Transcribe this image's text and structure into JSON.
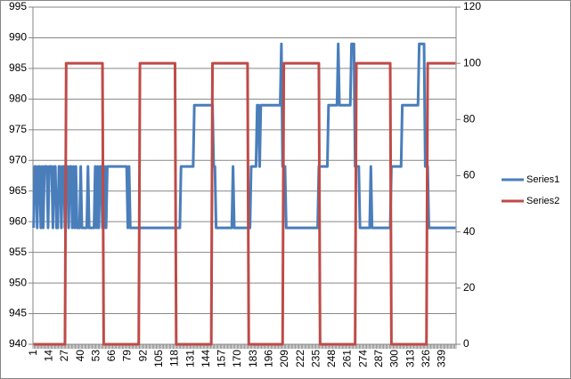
{
  "chart_data": {
    "type": "line",
    "categories": [
      "1",
      null,
      null,
      null,
      null,
      null,
      null,
      null,
      null,
      null,
      null,
      null,
      null,
      "14",
      null,
      null,
      null,
      null,
      null,
      null,
      null,
      null,
      null,
      null,
      null,
      null,
      "27",
      null,
      null,
      null,
      null,
      null,
      null,
      null,
      null,
      null,
      null,
      null,
      null,
      "40",
      null,
      null,
      null,
      null,
      null,
      null,
      null,
      null,
      null,
      null,
      null,
      null,
      "53",
      null,
      null,
      null,
      null,
      null,
      null,
      null,
      null,
      null,
      null,
      null,
      null,
      "66",
      null,
      null,
      null,
      null,
      null,
      null,
      null,
      null,
      null,
      null,
      null,
      null,
      "79",
      null,
      null,
      null,
      null,
      null,
      null,
      null,
      null,
      null,
      null,
      null,
      null,
      "92",
      null,
      null,
      null,
      null,
      null,
      null,
      null,
      null,
      null,
      null,
      null,
      null,
      "105",
      null,
      null,
      null,
      null,
      null,
      null,
      null,
      null,
      null,
      null,
      null,
      null,
      "118",
      null,
      null,
      null,
      null,
      null,
      null,
      null,
      null,
      null,
      null,
      null,
      null,
      "131",
      null,
      null,
      null,
      null,
      null,
      null,
      null,
      null,
      null,
      null,
      null,
      null,
      "144",
      null,
      null,
      null,
      null,
      null,
      null,
      null,
      null,
      null,
      null,
      null,
      null,
      "157",
      null,
      null,
      null,
      null,
      null,
      null,
      null,
      null,
      null,
      null,
      null,
      null,
      "170",
      null,
      null,
      null,
      null,
      null,
      null,
      null,
      null,
      null,
      null,
      null,
      null,
      "183",
      null,
      null,
      null,
      null,
      null,
      null,
      null,
      null,
      null,
      null,
      null,
      null,
      "196",
      null,
      null,
      null,
      null,
      null,
      null,
      null,
      null,
      null,
      null,
      null,
      null,
      "209",
      null,
      null,
      null,
      null,
      null,
      null,
      null,
      null,
      null,
      null,
      null,
      null,
      "222",
      null,
      null,
      null,
      null,
      null,
      null,
      null,
      null,
      null,
      null,
      null,
      null,
      "235",
      null,
      null,
      null,
      null,
      null,
      null,
      null,
      null,
      null,
      null,
      null,
      null,
      "248",
      null,
      null,
      null,
      null,
      null,
      null,
      null,
      null,
      null,
      null,
      null,
      null,
      "261",
      null,
      null,
      null,
      null,
      null,
      null,
      null,
      null,
      null,
      null,
      null,
      null,
      "274",
      null,
      null,
      null,
      null,
      null,
      null,
      null,
      null,
      null,
      null,
      null,
      null,
      "287",
      null,
      null,
      null,
      null,
      null,
      null,
      null,
      null,
      null,
      null,
      null,
      null,
      "300",
      null,
      null,
      null,
      null,
      null,
      null,
      null,
      null,
      null,
      null,
      null,
      null,
      "313",
      null,
      null,
      null,
      null,
      null,
      null,
      null,
      null,
      null,
      null,
      null,
      null,
      "326",
      null,
      null,
      null,
      null,
      null,
      null,
      null,
      null,
      null,
      null,
      null,
      null,
      "339",
      null,
      null,
      null,
      null,
      null,
      null,
      null,
      null,
      null,
      null,
      null
    ],
    "series": [
      {
        "name": "Series1",
        "color": "#4a7ebb",
        "values": [
          959,
          969,
          969,
          959,
          969,
          969,
          959,
          969,
          959,
          969,
          969,
          969,
          959,
          969,
          969,
          969,
          959,
          969,
          969,
          959,
          959,
          969,
          969,
          959,
          969,
          969,
          959,
          969,
          969,
          959,
          969,
          969,
          959,
          969,
          959,
          969,
          959,
          959,
          959,
          969,
          959,
          959,
          959,
          959,
          959,
          969,
          959,
          959,
          959,
          959,
          959,
          969,
          959,
          969,
          959,
          969,
          969,
          959,
          959,
          969,
          959,
          969,
          969,
          969,
          969,
          969,
          969,
          969,
          969,
          969,
          969,
          969,
          969,
          969,
          969,
          969,
          969,
          969,
          959,
          969,
          959,
          959,
          959,
          959,
          959,
          959,
          959,
          959,
          959,
          959,
          959,
          959,
          959,
          959,
          959,
          959,
          959,
          959,
          959,
          959,
          959,
          959,
          959,
          959,
          959,
          959,
          959,
          959,
          959,
          959,
          959,
          959,
          959,
          959,
          959,
          959,
          959,
          959,
          959,
          959,
          959,
          959,
          969,
          969,
          969,
          969,
          969,
          969,
          969,
          969,
          969,
          969,
          969,
          979,
          979,
          979,
          979,
          979,
          979,
          979,
          979,
          979,
          979,
          979,
          979,
          979,
          979,
          979,
          979,
          969,
          969,
          959,
          959,
          959,
          959,
          959,
          959,
          959,
          959,
          959,
          959,
          959,
          959,
          959,
          959,
          969,
          959,
          959,
          959,
          959,
          959,
          959,
          959,
          959,
          959,
          959,
          959,
          959,
          959,
          959,
          969,
          969,
          969,
          969,
          969,
          979,
          979,
          969,
          979,
          979,
          979,
          979,
          979,
          979,
          979,
          979,
          979,
          979,
          979,
          979,
          979,
          979,
          979,
          979,
          979,
          989,
          969,
          969,
          969,
          959,
          959,
          959,
          959,
          959,
          959,
          959,
          959,
          959,
          959,
          959,
          959,
          959,
          959,
          959,
          959,
          959,
          959,
          959,
          959,
          959,
          959,
          959,
          959,
          959,
          959,
          959,
          969,
          969,
          969,
          969,
          969,
          969,
          969,
          969,
          979,
          979,
          979,
          979,
          979,
          979,
          979,
          979,
          989,
          979,
          979,
          979,
          979,
          979,
          979,
          979,
          979,
          979,
          979,
          989,
          989,
          989,
          969,
          969,
          969,
          969,
          959,
          959,
          959,
          959,
          959,
          959,
          959,
          959,
          959,
          969,
          959,
          959,
          959,
          959,
          959,
          959,
          959,
          959,
          959,
          959,
          959,
          959,
          959,
          959,
          959,
          959,
          969,
          969,
          969,
          969,
          969,
          969,
          969,
          969,
          969,
          979,
          979,
          979,
          979,
          979,
          979,
          979,
          979,
          979,
          979,
          979,
          979,
          979,
          979,
          989,
          989,
          989,
          989,
          989,
          969,
          969,
          969,
          959,
          959,
          959,
          959,
          959,
          959,
          959,
          959,
          959,
          959,
          959,
          959,
          959,
          959,
          959,
          959,
          959,
          959,
          959,
          959,
          959,
          959,
          959
        ]
      },
      {
        "name": "Series2",
        "color": "#be4b48",
        "axis": "y2",
        "values": [
          0,
          0,
          0,
          0,
          0,
          0,
          0,
          0,
          0,
          0,
          0,
          0,
          0,
          0,
          0,
          0,
          0,
          0,
          0,
          0,
          0,
          0,
          0,
          0,
          0,
          0,
          0,
          100,
          100,
          100,
          100,
          100,
          100,
          100,
          100,
          100,
          100,
          100,
          100,
          100,
          100,
          100,
          100,
          100,
          100,
          100,
          100,
          100,
          100,
          100,
          100,
          100,
          100,
          100,
          100,
          100,
          100,
          100,
          0,
          0,
          0,
          0,
          0,
          0,
          0,
          0,
          0,
          0,
          0,
          0,
          0,
          0,
          0,
          0,
          0,
          0,
          0,
          0,
          0,
          0,
          0,
          0,
          0,
          0,
          0,
          0,
          0,
          0,
          100,
          100,
          100,
          100,
          100,
          100,
          100,
          100,
          100,
          100,
          100,
          100,
          100,
          100,
          100,
          100,
          100,
          100,
          100,
          100,
          100,
          100,
          100,
          100,
          100,
          100,
          100,
          100,
          100,
          100,
          0,
          0,
          0,
          0,
          0,
          0,
          0,
          0,
          0,
          0,
          0,
          0,
          0,
          0,
          0,
          0,
          0,
          0,
          0,
          0,
          0,
          0,
          0,
          0,
          0,
          0,
          0,
          0,
          0,
          0,
          100,
          100,
          100,
          100,
          100,
          100,
          100,
          100,
          100,
          100,
          100,
          100,
          100,
          100,
          100,
          100,
          100,
          100,
          100,
          100,
          100,
          100,
          100,
          100,
          100,
          100,
          100,
          100,
          100,
          100,
          0,
          0,
          0,
          0,
          0,
          0,
          0,
          0,
          0,
          0,
          0,
          0,
          0,
          0,
          0,
          0,
          0,
          0,
          0,
          0,
          0,
          0,
          0,
          0,
          0,
          0,
          0,
          0,
          0,
          100,
          100,
          100,
          100,
          100,
          100,
          100,
          100,
          100,
          100,
          100,
          100,
          100,
          100,
          100,
          100,
          100,
          100,
          100,
          100,
          100,
          100,
          100,
          100,
          100,
          100,
          100,
          100,
          100,
          100,
          0,
          0,
          0,
          0,
          0,
          0,
          0,
          0,
          0,
          0,
          0,
          0,
          0,
          0,
          0,
          0,
          0,
          0,
          0,
          0,
          0,
          0,
          0,
          0,
          0,
          0,
          0,
          0,
          0,
          0,
          100,
          100,
          100,
          100,
          100,
          100,
          100,
          100,
          100,
          100,
          100,
          100,
          100,
          100,
          100,
          100,
          100,
          100,
          100,
          100,
          100,
          100,
          100,
          100,
          100,
          100,
          100,
          100,
          100,
          0,
          0,
          0,
          0,
          0,
          0,
          0,
          0,
          0,
          0,
          0,
          0,
          0,
          0,
          0,
          0,
          0,
          0,
          0,
          0,
          0,
          0,
          0,
          0,
          0,
          0,
          0,
          0,
          0,
          0,
          100,
          100,
          100,
          100,
          100,
          100,
          100,
          100,
          100,
          100,
          100,
          100,
          100,
          100,
          100,
          100,
          100,
          100,
          100,
          100,
          100,
          100,
          100,
          100
        ]
      }
    ],
    "ylim": [
      940,
      995
    ],
    "yticks": [
      940,
      945,
      950,
      955,
      960,
      965,
      970,
      975,
      980,
      985,
      990,
      995
    ],
    "y2lim": [
      0,
      120
    ],
    "y2ticks": [
      0,
      20,
      40,
      60,
      80,
      100,
      120
    ],
    "grid": true,
    "legend": "right"
  }
}
